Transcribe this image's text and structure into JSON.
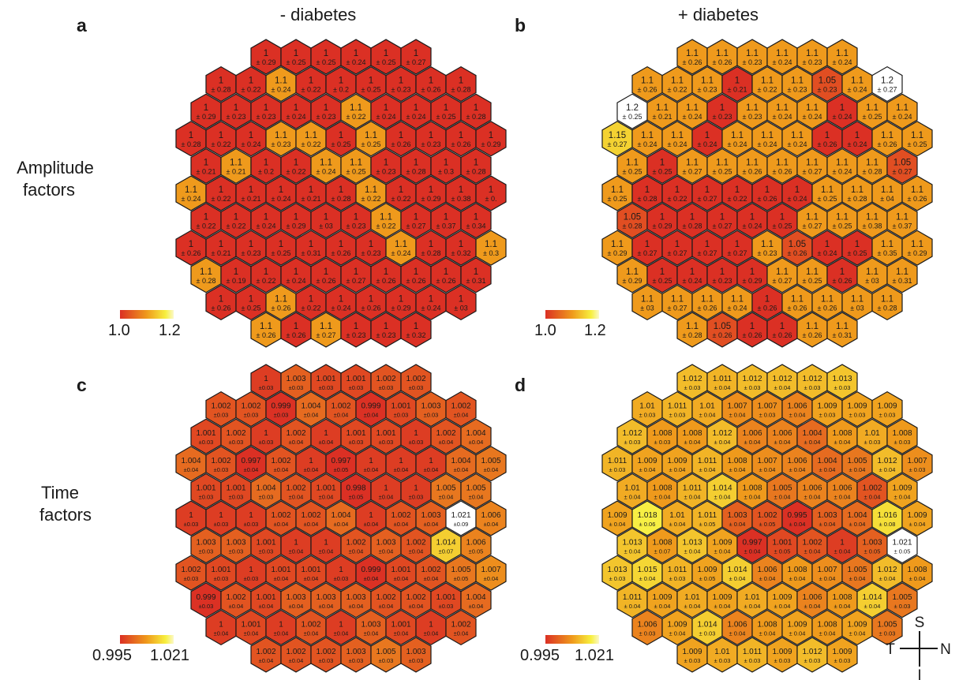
{
  "columns": {
    "left": "- diabetes",
    "right": "+ diabetes"
  },
  "rows": {
    "amplitude": [
      "Amplitude",
      "factors"
    ],
    "time": [
      "Time",
      "factors"
    ]
  },
  "colors": {
    "low": "#db3024",
    "mid": "#ef9a1c",
    "high": "#f7ef3e",
    "max": "#ffffff",
    "outline": "#1a1a1a"
  },
  "compass": {
    "up": "S",
    "left": "T",
    "right": "N",
    "down": "I"
  },
  "panels": [
    {
      "letter": "a",
      "kind": "amplitude",
      "scale_labels": [
        "1.0",
        "1.2"
      ],
      "scale_range": [
        1.0,
        1.2
      ],
      "cells": [
        [
          "1|± 0.29",
          "1|± 0.25",
          "1|± 0.25",
          "1|± 0.24",
          "1|± 0.25",
          "1|± 0.27"
        ],
        [
          "1|± 0.28",
          "1|± 0.22",
          "1.1|± 0.24",
          "1|± 0.22",
          "1|± 0.2",
          "1|± 0.25",
          "1|± 0.23",
          "1|± 0.26",
          "1|± 0.28"
        ],
        [
          "1|± 0.29",
          "1|± 0.23",
          "1|± 0.23",
          "1|± 0.24",
          "1|± 0.23",
          "1.1|± 0.22",
          "1|± 0.24",
          "1|± 0.24",
          "1|± 0.25",
          "1|± 0.28"
        ],
        [
          "1|± 0.28",
          "1|± 0.22",
          "1|± 0.24",
          "1.1|± 0.23",
          "1.1|± 0.22",
          "1|± 0.25",
          "1.1|± 0.25",
          "1|± 0.26",
          "1|± 0.23",
          "1|± 0.26",
          "1|± 0.29"
        ],
        [
          "1|± 0.21",
          "1.1|± 0.21",
          "1|± 0.2",
          "1|± 0.22",
          "1.1|± 0.24",
          "1.1|± 0.25",
          "1|± 0.23",
          "1|± 0.28",
          "1|± 0.3",
          "1|± 0.28"
        ],
        [
          "1.1|± 0.24",
          "1|± 0.22",
          "1|± 0.21",
          "1|± 0.24",
          "1|± 0.21",
          "1|± 0.28",
          "1.1|± 0.22",
          "1|± 0.22",
          "1|± 0.29",
          "1|± 0.38",
          "1|± 0."
        ],
        [
          "1|± 0.22",
          "1|± 0.22",
          "1|± 0.24",
          "1|± 0.29",
          "1|± 03",
          "1|± 0.23",
          "1.1|± 0.22",
          "1|± 0.27",
          "1|± 0.37",
          "1|± 0.34"
        ],
        [
          "1|± 0.26",
          "1|± 0.21",
          "1|± 0.23",
          "1|± 0.25",
          "1|± 0.31",
          "1|± 0.26",
          "1|± 0.23",
          "1.1|± 0.24",
          "1|± 0.28",
          "1|± 0.32",
          "1.1|± 0.3"
        ],
        [
          "1.1|± 0.28",
          "1|± 0.19",
          "1|± 0.22",
          "1|± 0.24",
          "1|± 0.26",
          "1|± 0.27",
          "1|± 0.26",
          "1|± 0.26",
          "1|± 0.26",
          "1|± 0.31"
        ],
        [
          "1|± 0.26",
          "1|± 0.25",
          "1.1|± 0.26",
          "1|± 0.22",
          "1|± 0.24",
          "1|± 0.26",
          "1|± 0.29",
          "1|± 0.24",
          "1|± 03"
        ],
        [
          "1.1|± 0.26",
          "1|± 0.26",
          "1.1|± 0.27",
          "1|± 0.23",
          "1|± 0.23",
          "1|± 0.32"
        ]
      ]
    },
    {
      "letter": "b",
      "kind": "amplitude",
      "scale_labels": [
        "1.0",
        "1.2"
      ],
      "scale_range": [
        1.0,
        1.2
      ],
      "cells": [
        [
          "1.1|± 0.26",
          "1.1|± 0.26",
          "1.1|± 0.23",
          "1.1|± 0.24",
          "1.1|± 0.23",
          "1.1|± 0.24"
        ],
        [
          "1.1|± 0.26",
          "1.1|± 0.22",
          "1.1|± 0.23",
          "1|± 0.21",
          "1.1|± 0.22",
          "1.1|± 0.23",
          "1.05|± 0.23",
          "1.1|± 0.24",
          "1.2|± 0.27"
        ],
        [
          "1.2|± 0.25",
          "1.1|± 0.21",
          "1.1|± 0.24",
          "1|± 0.23",
          "1.1|± 0.23",
          "1.1|± 0.24",
          "1.1|± 0.24",
          "1|± 0.24",
          "1.1|± 0.25",
          "1.1|± 0.24"
        ],
        [
          "1.15|± 0.27",
          "1.1|± 0.24",
          "1.1|± 0.24",
          "1|± 0.24",
          "1.1|± 0.24",
          "1.1|± 0.24",
          "1.1|± 0.24",
          "1|± 0.26",
          "1|± 0.24",
          "1.1|± 0.26",
          "1.1|± 0.25"
        ],
        [
          "1.1|± 0.25",
          "1|± 0.25",
          "1.1|± 0.27",
          "1.1|± 0.25",
          "1.1|± 0.26",
          "1.1|± 0.26",
          "1.1|± 0.27",
          "1.1|± 0.24",
          "1.1|± 0.28",
          "1.05|± 0.27"
        ],
        [
          "1.1|± 0.25",
          "1|± 0.28",
          "1|± 0.22",
          "1|± 0.27",
          "1|± 0.22",
          "1|± 0.26",
          "1|± 0.24",
          "1.1|± 0.25",
          "1.1|± 0.28",
          "1.1|± 04",
          "1.1|± 0.26"
        ],
        [
          "1.05|± 0.28",
          "1|± 0.29",
          "1|± 0.28",
          "1|± 0.27",
          "1|± 0.24",
          "1|± 0.25",
          "1.1|± 0.27",
          "1.1|± 0.25",
          "1.1|± 0.38",
          "1.1|± 0.37"
        ],
        [
          "1.1|± 0.29",
          "1|± 0.27",
          "1|± 0.27",
          "1|± 0.27",
          "1|± 0.27",
          "1.1|± 0.23",
          "1.05|± 0.26",
          "1|± 0.24",
          "1|± 0.25",
          "1.1|± 0.35",
          "1.1|± 0.29"
        ],
        [
          "1.1|± 0.29",
          "1|± 0.25",
          "1|± 0.24",
          "1|± 0.23",
          "1|± 0.29",
          "1.1|± 0.27",
          "1.1|± 0.25",
          "1|± 0.26",
          "1.1|± 03",
          "1.1|± 0.31"
        ],
        [
          "1.1|± 03",
          "1.1|± 0.27",
          "1.1|± 0.26",
          "1.1|± 0.24",
          "1|± 0.26",
          "1.1|± 0.26",
          "1.1|± 0.26",
          "1.1|± 03",
          "1.1|± 0.28"
        ],
        [
          "1.1|± 0.28",
          "1.05|± 0.26",
          "1|± 0.26",
          "1|± 0.26",
          "1.1|± 0.26",
          "1.1|± 0.31"
        ]
      ]
    },
    {
      "letter": "c",
      "kind": "time",
      "scale_labels": [
        "0.995",
        "1.021"
      ],
      "scale_range": [
        0.995,
        1.021
      ],
      "cells": [
        [
          "1|±0.03",
          "1.003|±0.03",
          "1.001|±0.03",
          "1.001|±0.03",
          "1.002|±0.03",
          "1.002|±0.03"
        ],
        [
          "1.002|±0.03",
          "1.002|±0.03",
          "0.999|±0.03",
          "1.004|±0.04",
          "1.002|±0.04",
          "0.999|±0.04",
          "1.001|±0.03",
          "1.003|±0.03",
          "1.002|±0.04"
        ],
        [
          "1.001|±0.03",
          "1.002|±0.03",
          "1|±0.03",
          "1.002|±0.04",
          "1|±0.04",
          "1.001|±0.03",
          "1.001|±0.03",
          "1|±0.03",
          "1.002|±0.04",
          "1.004|±0.04"
        ],
        [
          "1.004|±0.04",
          "1.002|±0.03",
          "0.997|±0.04",
          "1.002|±0.04",
          "1|±0.04",
          "0.997|±0.05",
          "1|±0.04",
          "1|±0.04",
          "1|±0.04",
          "1.004|±0.04",
          "1.005|±0.04"
        ],
        [
          "1.001|±0.03",
          "1.001|±0.03",
          "1.004|±0.03",
          "1.002|±0.04",
          "1.001|±0.04",
          "0.998|±0.05",
          "1|±0.04",
          "1|±0.03",
          "1.005|±0.04",
          "1.005|±0.04"
        ],
        [
          "1|±0.03",
          "1|±0.03",
          "1|±0.03",
          "1.002|±0.04",
          "1.002|±0.04",
          "1.004|±0.04",
          "1|±0.04",
          "1.002|±0.04",
          "1.003|±0.04",
          "1.021|±0.09",
          "1.006|±0.04"
        ],
        [
          "1.003|±0.03",
          "1.003|±0.03",
          "1.001|±0.03",
          "1|±0.04",
          "1|±0.04",
          "1.002|±0.04",
          "1.003|±0.04",
          "1.002|±0.04",
          "1.014|±0.07",
          "1.006|±0.05"
        ],
        [
          "1.002|±0.03",
          "1.001|±0.03",
          "1|±0.03",
          "1.001|±0.04",
          "1.001|±0.04",
          "1|±0.03",
          "0.999|±0.04",
          "1.001|±0.04",
          "1.002|±0.04",
          "1.005|±0.05",
          "1.007|±0.04"
        ],
        [
          "0.999|±0.03",
          "1.002|±0.04",
          "1.001|±0.04",
          "1.003|±0.04",
          "1.003|±0.04",
          "1.003|±0.04",
          "1.002|±0.04",
          "1.002|±0.04",
          "1.001|±0.03",
          "1.004|±0.04"
        ],
        [
          "1|±0.04",
          "1.001|±0.04",
          "1|±0.04",
          "1.002|±0.04",
          "1|±0.04",
          "1.003|±0.04",
          "1.001|±0.04",
          "1|±0.04",
          "1.002|±0.04"
        ],
        [
          "1.002|±0.04",
          "1.002|±0.04",
          "1.002|±0.03",
          "1.003|±0.03",
          "1.005|±0.03",
          "1.003|±0.03"
        ]
      ]
    },
    {
      "letter": "d",
      "kind": "time",
      "scale_labels": [
        "0.995",
        "1.021"
      ],
      "scale_range": [
        0.995,
        1.021
      ],
      "cells": [
        [
          "1.012|± 0.03",
          "1.011|± 0.04",
          "1.012|± 0.03",
          "1.012|± 0.04",
          "1.012|± 0.03",
          "1.013|± 0.03"
        ],
        [
          "1.01|± 0.03",
          "1.011|± 0.03",
          "1.01|± 0.04",
          "1.007|± 0.04",
          "1.007|± 0.03",
          "1.006|± 0.04",
          "1.009|± 0.03",
          "1.009|± 0.03",
          "1.009|± 0.03"
        ],
        [
          "1.012|± 0.03",
          "1.008|± 0.03",
          "1.008|± 0.04",
          "1.012|± 0.04",
          "1.006|± 0.04",
          "1.006|± 0.04",
          "1.004|± 0.04",
          "1.008|± 0.04",
          "1.01|± 0.03",
          "1.008|± 0.03"
        ],
        [
          "1.011|± 0.03",
          "1.009|± 0.04",
          "1.009|± 0.04",
          "1.011|± 0.04",
          "1.008|± 0.04",
          "1.007|± 0.04",
          "1.006|± 0.04",
          "1.004|± 0.04",
          "1.005|± 0.04",
          "1.012|± 0.04",
          "1.007|± 0.03"
        ],
        [
          "1.01|± 0.04",
          "1.008|± 0.04",
          "1.011|± 0.04",
          "1.014|± 0.04",
          "1.008|± 0.04",
          "1.005|± 0.04",
          "1.006|± 0.04",
          "1.006|± 0.04",
          "1.002|± 0.04",
          "1.009|± 0.04"
        ],
        [
          "1.009|± 0.04",
          "1.018|± 0.06",
          "1.01|± 0.04",
          "1.011|± 0.05",
          "1.003|± 0.04",
          "1.002|± 0.05",
          "0.995|± 0.04",
          "1.003|± 0.04",
          "1.004|± 0.04",
          "1.016|± 0.08",
          "1.009|± 0.04"
        ],
        [
          "1.013|± 0.04",
          "1.008|± 0.07",
          "1.013|± 0.04",
          "1.009|± 0.04",
          "0.997|± 0.04",
          "1.001|± 0.05",
          "1.002|± 0.04",
          "1|± 0.04",
          "1.003|± 0.05",
          "1.021|± 0.05"
        ],
        [
          "1.013|± 0.03",
          "1.015|± 0.04",
          "1.011|± 0.03",
          "1.009|± 0.05",
          "1.014|± 0.04",
          "1.006|± 0.04",
          "1.008|± 0.04",
          "1.007|± 0.04",
          "1.005|± 0.04",
          "1.012|± 0.04",
          "1.008|± 0.04"
        ],
        [
          "1.011|± 0.04",
          "1.009|± 0.04",
          "1.01|± 0.04",
          "1.009|± 0.04",
          "1.01|± 0.04",
          "1.009|± 0.04",
          "1.006|± 0.04",
          "1.008|± 0.04",
          "1.014|± 0.04",
          "1.005|± 0.03"
        ],
        [
          "1.006|± 0.03",
          "1.009|± 0.04",
          "1.014|± 0.03",
          "1.006|± 0.04",
          "1.008|± 0.04",
          "1.009|± 0.04",
          "1.008|± 0.04",
          "1.009|± 0.04",
          "1.005|± 0.03"
        ],
        [
          "1.009|± 0.03",
          "1.01|± 0.03",
          "1.011|± 0.03",
          "1.009|± 0.03",
          "1.012|± 0.03",
          "1.009|± 0.03"
        ]
      ]
    }
  ]
}
